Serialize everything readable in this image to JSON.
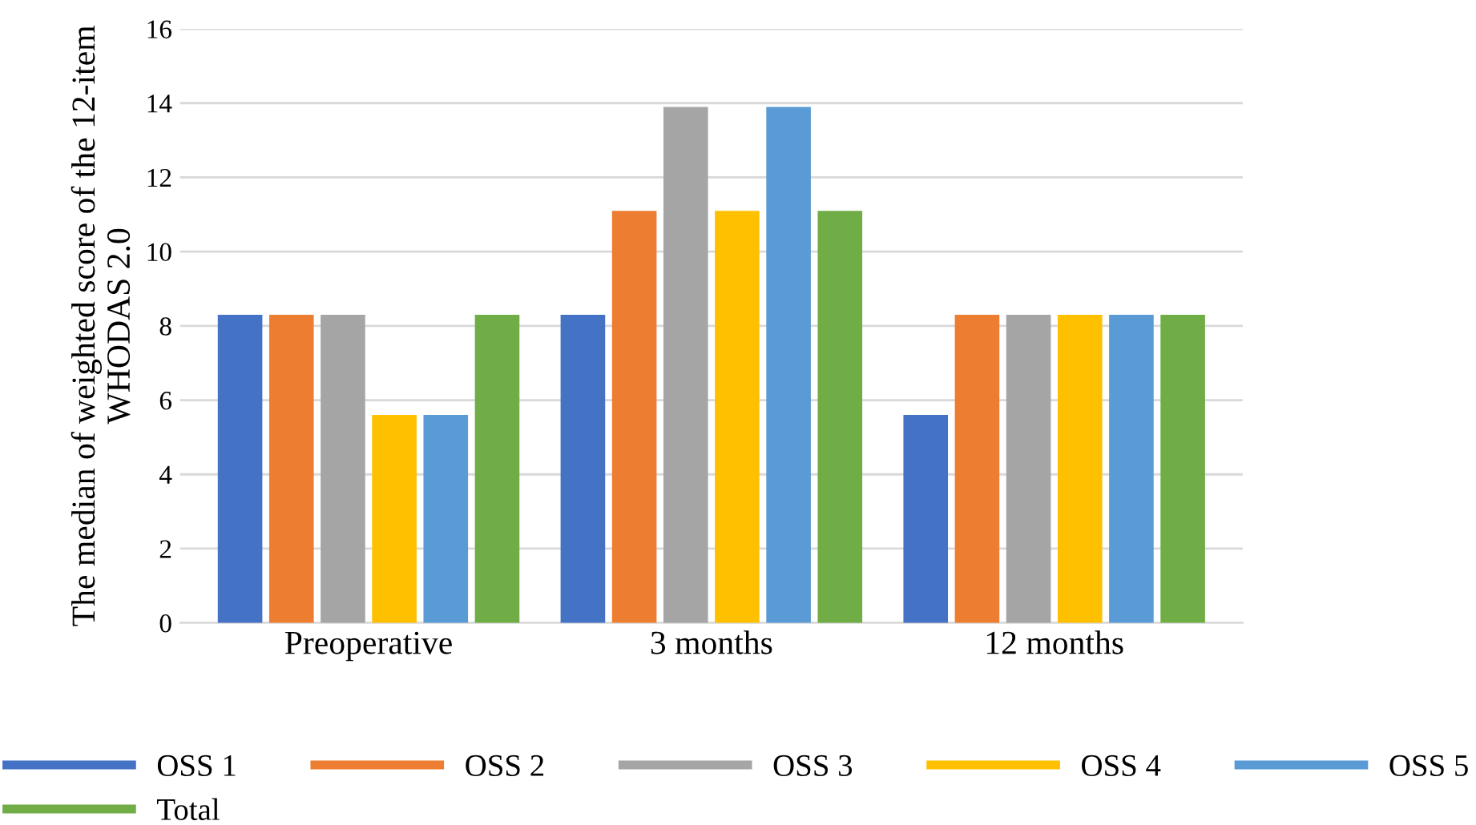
{
  "chart_data": {
    "type": "bar",
    "ylabel": "The median of weighted score of the 12-item WHODAS 2.0",
    "categories": [
      "Preoperative",
      "3 months",
      "12 months"
    ],
    "series": [
      {
        "name": "OSS 1",
        "color": "#4472c4",
        "values": [
          8.3,
          8.3,
          5.6
        ]
      },
      {
        "name": "OSS 2",
        "color": "#ed7d31",
        "values": [
          8.3,
          11.1,
          8.3
        ]
      },
      {
        "name": "OSS 3",
        "color": "#a5a5a5",
        "values": [
          8.3,
          13.9,
          8.3
        ]
      },
      {
        "name": "OSS 4",
        "color": "#ffc000",
        "values": [
          5.6,
          11.1,
          8.3
        ]
      },
      {
        "name": "OSS 5",
        "color": "#5b9bd5",
        "values": [
          5.6,
          13.9,
          8.3
        ]
      },
      {
        "name": "Total",
        "color": "#70ad47",
        "values": [
          8.3,
          11.1,
          8.3
        ]
      }
    ],
    "ylim": [
      0,
      16
    ],
    "yticks": [
      0,
      2,
      4,
      6,
      8,
      10,
      12,
      14,
      16
    ],
    "grid": "y",
    "legend": "bottom"
  }
}
